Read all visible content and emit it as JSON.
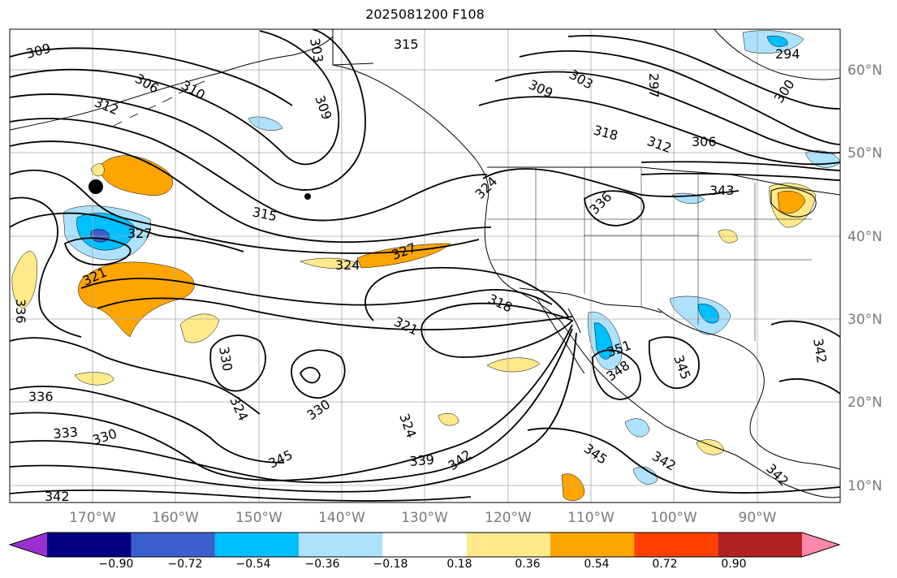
{
  "title": "2025081200 F108",
  "map": {
    "lat_labels": [
      "60°N",
      "50°N",
      "40°N",
      "30°N",
      "20°N",
      "10°N"
    ],
    "lon_labels": [
      "170°W",
      "160°W",
      "150°W",
      "140°W",
      "130°W",
      "120°W",
      "110°W",
      "100°W",
      "90°W"
    ],
    "contour_labels": [
      "309",
      "306",
      "312",
      "310",
      "303",
      "315",
      "309",
      "309",
      "303",
      "297",
      "300",
      "294",
      "318",
      "312",
      "306",
      "315",
      "327",
      "324",
      "327",
      "321",
      "336",
      "321",
      "318",
      "324",
      "336",
      "343",
      "330",
      "324",
      "330",
      "336",
      "333",
      "330",
      "324",
      "339",
      "342",
      "345",
      "342",
      "345",
      "342",
      "342",
      "351",
      "348",
      "345",
      "342"
    ]
  },
  "colorbar": {
    "ticks": [
      "−0.90",
      "−0.72",
      "−0.54",
      "−0.36",
      "−0.18",
      "0.18",
      "0.36",
      "0.54",
      "0.72",
      "0.90"
    ],
    "colors": [
      "#9b30d0",
      "#000080",
      "#3a5fcd",
      "#00bfff",
      "#aee2fc",
      "#ffffff",
      "#ffe98a",
      "#ffa500",
      "#ff4000",
      "#b22222",
      "#ff88aa"
    ]
  }
}
